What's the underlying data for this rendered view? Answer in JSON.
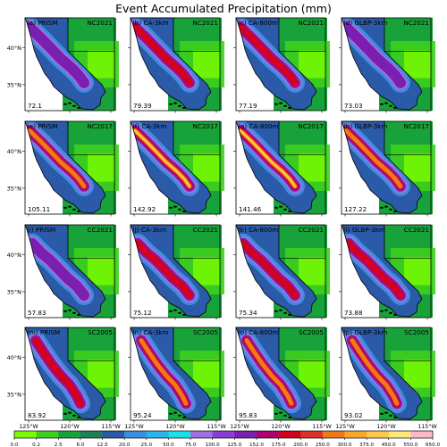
{
  "title": "Event Accumulated Precipitation (mm)",
  "columns": [
    "PRISM",
    "CA-3km",
    "CA-800m",
    "GLBP-3km"
  ],
  "rows": [
    {
      "event": "NC2021",
      "labels": [
        "(a)",
        "(b)",
        "(c)",
        "(d)"
      ],
      "values": [
        "72.1",
        "79.39",
        "77.19",
        "73.03"
      ],
      "intensity": [
        0.55,
        0.6,
        0.6,
        0.55
      ],
      "pattern": "north"
    },
    {
      "event": "NC2017",
      "labels": [
        "(e)",
        "(f)",
        "(g)",
        "(h)"
      ],
      "values": [
        "105.11",
        "142.92",
        "141.46",
        "127.22"
      ],
      "intensity": [
        0.8,
        1.0,
        1.0,
        0.9
      ],
      "pattern": "north"
    },
    {
      "event": "CC2021",
      "labels": [
        "(i)",
        "(j)",
        "(k)",
        "(l)"
      ],
      "values": [
        "57.83",
        "75.12",
        "75.34",
        "73.88"
      ],
      "intensity": [
        0.45,
        0.6,
        0.6,
        0.6
      ],
      "pattern": "central"
    },
    {
      "event": "SC2005",
      "labels": [
        "(m)",
        "(n)",
        "(o)",
        "(p)"
      ],
      "values": [
        "83.92",
        "95.24",
        "95.83",
        "93.02"
      ],
      "intensity": [
        0.7,
        0.8,
        0.8,
        0.8
      ],
      "pattern": "south"
    }
  ],
  "lat_ticks": [
    "40°N",
    "35°N"
  ],
  "lon_ticks": [
    "125°W",
    "120°W",
    "115°W"
  ],
  "colorbar": {
    "ticks": [
      "0.0",
      "0.2",
      "2.5",
      "6.0",
      "12.5",
      "20.0",
      "25.0",
      "50.0",
      "75.0",
      "100.0",
      "125.0",
      "152.0",
      "175.0",
      "200.0",
      "250.0",
      "300.0",
      "375.0",
      "450.0",
      "550.0",
      "650.0"
    ],
    "colors": [
      "#7cfc00",
      "#3ecf1f",
      "#18a33a",
      "#1f7f5a",
      "#2a5aa8",
      "#3b8ee0",
      "#29b6e8",
      "#1ae0e8",
      "#a070e0",
      "#8a3ed8",
      "#7a1fb0",
      "#b00070",
      "#d40020",
      "#e0302a",
      "#f07a1a",
      "#f7a82a",
      "#ffc84a",
      "#ffe87a",
      "#ffb6c8"
    ]
  }
}
